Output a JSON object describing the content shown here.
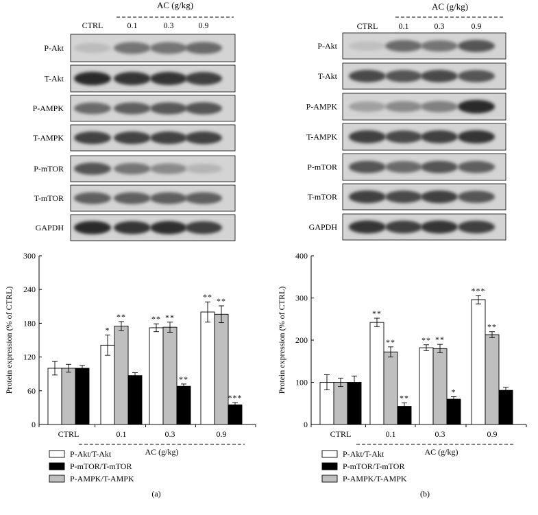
{
  "panels": [
    {
      "caption": "(a)",
      "blot": {
        "group_label": "AC (g/kg)",
        "lanes": [
          "CTRL",
          "0.1",
          "0.3",
          "0.9"
        ],
        "bands": [
          {
            "label": "P-Akt",
            "intensity": [
              0.22,
              0.55,
              0.55,
              0.6
            ]
          },
          {
            "label": "T-Akt",
            "intensity": [
              0.9,
              0.85,
              0.85,
              0.8
            ]
          },
          {
            "label": "P-AMPK",
            "intensity": [
              0.6,
              0.65,
              0.68,
              0.7
            ]
          },
          {
            "label": "T-AMPK",
            "intensity": [
              0.78,
              0.78,
              0.78,
              0.78
            ]
          },
          {
            "label": "P-mTOR",
            "intensity": [
              0.7,
              0.55,
              0.45,
              0.25
            ]
          },
          {
            "label": "T-mTOR",
            "intensity": [
              0.65,
              0.65,
              0.65,
              0.65
            ]
          },
          {
            "label": "GAPDH",
            "intensity": [
              0.9,
              0.85,
              0.88,
              0.8
            ]
          }
        ]
      },
      "chart_data": {
        "type": "bar",
        "xlabel": "AC (g/kg)",
        "ylabel": "Protein expression (% of CTRL)",
        "categories": [
          "CTRL",
          "0.1",
          "0.3",
          "0.9"
        ],
        "ylim": [
          0,
          300
        ],
        "yticks": [
          0,
          60,
          120,
          180,
          240,
          300
        ],
        "series": [
          {
            "name": "P-Akt/T-Akt",
            "color": "#ffffff",
            "values": [
              100,
              141,
              172,
              200
            ],
            "errors": [
              12,
              18,
              7,
              18
            ],
            "sig": [
              "",
              "*",
              "**",
              "**"
            ]
          },
          {
            "name": "P-AMPK/T-AMPK",
            "color": "#bfbfbf",
            "values": [
              100,
              175,
              173,
              196
            ],
            "errors": [
              7,
              8,
              9,
              15
            ],
            "sig": [
              "",
              "**",
              "**",
              "**"
            ]
          },
          {
            "name": "P-mTOR/T-mTOR",
            "color": "#000000",
            "values": [
              100,
              87,
              68,
              35
            ],
            "errors": [
              5,
              5,
              4,
              4
            ],
            "sig": [
              "",
              "",
              "**",
              "***"
            ]
          }
        ]
      }
    },
    {
      "caption": "(b)",
      "blot": {
        "group_label": "AC (g/kg)",
        "lanes": [
          "CTRL",
          "0.1",
          "0.3",
          "0.9"
        ],
        "bands": [
          {
            "label": "P-Akt",
            "intensity": [
              0.2,
              0.6,
              0.55,
              0.7
            ]
          },
          {
            "label": "T-Akt",
            "intensity": [
              0.75,
              0.7,
              0.75,
              0.7
            ]
          },
          {
            "label": "P-AMPK",
            "intensity": [
              0.35,
              0.45,
              0.5,
              0.9
            ]
          },
          {
            "label": "T-AMPK",
            "intensity": [
              0.8,
              0.75,
              0.8,
              0.85
            ]
          },
          {
            "label": "P-mTOR",
            "intensity": [
              0.7,
              0.6,
              0.7,
              0.65
            ]
          },
          {
            "label": "T-mTOR",
            "intensity": [
              0.8,
              0.75,
              0.8,
              0.7
            ]
          },
          {
            "label": "GAPDH",
            "intensity": [
              0.85,
              0.8,
              0.85,
              0.8
            ]
          }
        ]
      },
      "chart_data": {
        "type": "bar",
        "xlabel": "AC (g/kg)",
        "ylabel": "Protein expression (% of CTRL)",
        "categories": [
          "CTRL",
          "0.1",
          "0.3",
          "0.9"
        ],
        "ylim": [
          0,
          400
        ],
        "yticks": [
          0,
          100,
          200,
          300,
          400
        ],
        "series": [
          {
            "name": "P-Akt/T-Akt",
            "color": "#ffffff",
            "values": [
              100,
              242,
              182,
              296
            ],
            "errors": [
              18,
              10,
              7,
              10
            ],
            "sig": [
              "",
              "**",
              "**",
              "***"
            ]
          },
          {
            "name": "P-AMPK/T-AMPK",
            "color": "#bfbfbf",
            "values": [
              100,
              172,
              180,
              213
            ],
            "errors": [
              10,
              12,
              10,
              7
            ],
            "sig": [
              "",
              "**",
              "**",
              "**"
            ]
          },
          {
            "name": "P-mTOR/T-mTOR",
            "color": "#000000",
            "values": [
              100,
              43,
              60,
              81
            ],
            "errors": [
              15,
              8,
              6,
              7
            ],
            "sig": [
              "",
              "**",
              "*",
              ""
            ]
          }
        ]
      }
    }
  ]
}
